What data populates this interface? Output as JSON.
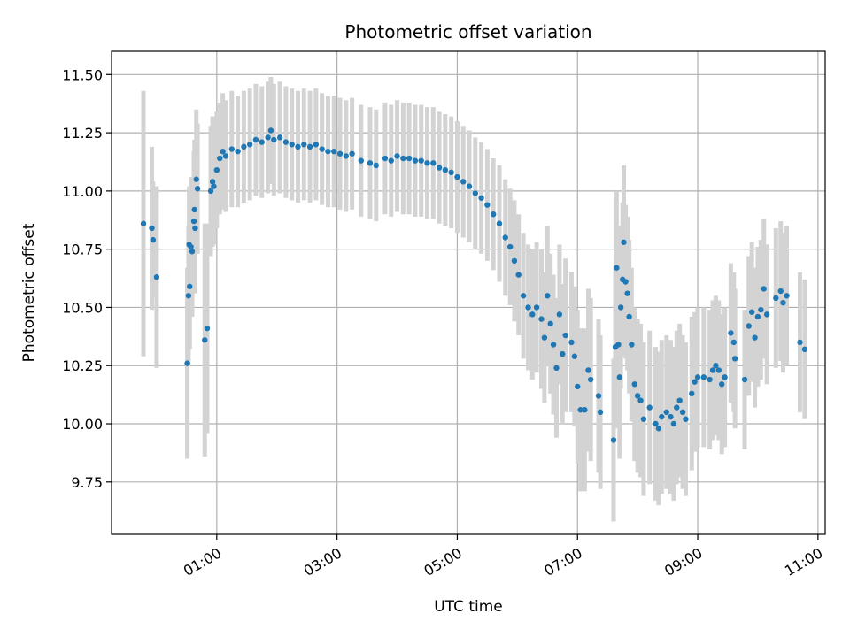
{
  "chart_data": {
    "type": "scatter",
    "title": "Photometric offset variation",
    "xlabel": "UTC time",
    "ylabel": "Photometric offset",
    "x_unit": "hours (UTC)",
    "xlim": [
      -0.75,
      11.12
    ],
    "ylim": [
      9.525,
      11.6
    ],
    "grid": true,
    "legend": "none",
    "x_ticks": [
      {
        "value": 1,
        "label": "01:00"
      },
      {
        "value": 3,
        "label": "03:00"
      },
      {
        "value": 5,
        "label": "05:00"
      },
      {
        "value": 7,
        "label": "07:00"
      },
      {
        "value": 9,
        "label": "09:00"
      },
      {
        "value": 11,
        "label": "11:00"
      }
    ],
    "y_ticks": [
      {
        "value": 9.75,
        "label": "9.75"
      },
      {
        "value": 10.0,
        "label": "10.00"
      },
      {
        "value": 10.25,
        "label": "10.25"
      },
      {
        "value": 10.5,
        "label": "10.50"
      },
      {
        "value": 10.75,
        "label": "10.75"
      },
      {
        "value": 11.0,
        "label": "11.00"
      },
      {
        "value": 11.25,
        "label": "11.25"
      },
      {
        "value": 11.5,
        "label": "11.50"
      }
    ],
    "colors": {
      "points": "#1f77b4",
      "errorbars": "#d3d3d3",
      "grid": "#b0b0b0"
    },
    "series": [
      {
        "points": [
          [
            -0.22,
            10.86,
            0.57
          ],
          [
            -0.08,
            10.84,
            0.35
          ],
          [
            -0.06,
            10.79,
            0.25
          ],
          [
            0.0,
            10.63,
            0.39
          ],
          [
            0.51,
            10.26,
            0.41
          ],
          [
            0.53,
            10.55,
            0.3
          ],
          [
            0.54,
            10.77,
            0.25
          ],
          [
            0.55,
            10.59,
            0.27
          ],
          [
            0.57,
            10.76,
            0.3
          ],
          [
            0.59,
            10.74,
            0.28
          ],
          [
            0.62,
            10.87,
            0.3
          ],
          [
            0.63,
            10.92,
            0.3
          ],
          [
            0.64,
            10.84,
            0.28
          ],
          [
            0.66,
            11.05,
            0.3
          ],
          [
            0.68,
            11.01,
            0.28
          ],
          [
            0.8,
            10.36,
            0.5
          ],
          [
            0.84,
            10.41,
            0.45
          ],
          [
            0.9,
            11.0,
            0.28
          ],
          [
            0.93,
            11.04,
            0.28
          ],
          [
            0.95,
            11.02,
            0.25
          ],
          [
            1.0,
            11.09,
            0.25
          ],
          [
            1.05,
            11.14,
            0.24
          ],
          [
            1.1,
            11.17,
            0.25
          ],
          [
            1.15,
            11.15,
            0.24
          ],
          [
            1.25,
            11.18,
            0.25
          ],
          [
            1.35,
            11.17,
            0.24
          ],
          [
            1.45,
            11.19,
            0.24
          ],
          [
            1.55,
            11.2,
            0.24
          ],
          [
            1.65,
            11.22,
            0.24
          ],
          [
            1.75,
            11.21,
            0.24
          ],
          [
            1.85,
            11.23,
            0.24
          ],
          [
            1.9,
            11.26,
            0.23
          ],
          [
            1.95,
            11.22,
            0.24
          ],
          [
            2.05,
            11.23,
            0.24
          ],
          [
            2.15,
            11.21,
            0.24
          ],
          [
            2.25,
            11.2,
            0.24
          ],
          [
            2.35,
            11.19,
            0.24
          ],
          [
            2.45,
            11.2,
            0.24
          ],
          [
            2.55,
            11.19,
            0.24
          ],
          [
            2.65,
            11.2,
            0.24
          ],
          [
            2.75,
            11.18,
            0.24
          ],
          [
            2.85,
            11.17,
            0.24
          ],
          [
            2.95,
            11.17,
            0.24
          ],
          [
            3.05,
            11.16,
            0.24
          ],
          [
            3.15,
            11.15,
            0.24
          ],
          [
            3.25,
            11.16,
            0.24
          ],
          [
            3.4,
            11.13,
            0.24
          ],
          [
            3.55,
            11.12,
            0.24
          ],
          [
            3.65,
            11.11,
            0.24
          ],
          [
            3.8,
            11.14,
            0.24
          ],
          [
            3.9,
            11.13,
            0.24
          ],
          [
            4.0,
            11.15,
            0.24
          ],
          [
            4.1,
            11.14,
            0.24
          ],
          [
            4.2,
            11.14,
            0.24
          ],
          [
            4.3,
            11.13,
            0.24
          ],
          [
            4.4,
            11.13,
            0.24
          ],
          [
            4.5,
            11.12,
            0.24
          ],
          [
            4.6,
            11.12,
            0.24
          ],
          [
            4.7,
            11.1,
            0.24
          ],
          [
            4.8,
            11.09,
            0.24
          ],
          [
            4.9,
            11.08,
            0.24
          ],
          [
            5.0,
            11.06,
            0.24
          ],
          [
            5.1,
            11.04,
            0.24
          ],
          [
            5.2,
            11.02,
            0.24
          ],
          [
            5.3,
            10.99,
            0.24
          ],
          [
            5.4,
            10.97,
            0.24
          ],
          [
            5.5,
            10.94,
            0.24
          ],
          [
            5.6,
            10.9,
            0.24
          ],
          [
            5.7,
            10.86,
            0.25
          ],
          [
            5.8,
            10.8,
            0.25
          ],
          [
            5.88,
            10.76,
            0.25
          ],
          [
            5.95,
            10.7,
            0.26
          ],
          [
            6.02,
            10.64,
            0.26
          ],
          [
            6.1,
            10.55,
            0.27
          ],
          [
            6.18,
            10.5,
            0.27
          ],
          [
            6.25,
            10.47,
            0.28
          ],
          [
            6.32,
            10.5,
            0.28
          ],
          [
            6.4,
            10.45,
            0.3
          ],
          [
            6.45,
            10.37,
            0.28
          ],
          [
            6.5,
            10.55,
            0.3
          ],
          [
            6.55,
            10.43,
            0.3
          ],
          [
            6.6,
            10.34,
            0.3
          ],
          [
            6.65,
            10.24,
            0.3
          ],
          [
            6.7,
            10.47,
            0.3
          ],
          [
            6.75,
            10.3,
            0.3
          ],
          [
            6.8,
            10.38,
            0.33
          ],
          [
            6.9,
            10.35,
            0.3
          ],
          [
            6.95,
            10.29,
            0.3
          ],
          [
            7.0,
            10.16,
            0.33
          ],
          [
            7.05,
            10.06,
            0.35
          ],
          [
            7.12,
            10.06,
            0.35
          ],
          [
            7.18,
            10.23,
            0.35
          ],
          [
            7.22,
            10.19,
            0.35
          ],
          [
            7.35,
            10.12,
            0.33
          ],
          [
            7.38,
            10.05,
            0.33
          ],
          [
            7.6,
            9.93,
            0.35
          ],
          [
            7.63,
            10.33,
            0.35
          ],
          [
            7.65,
            10.67,
            0.33
          ],
          [
            7.68,
            10.34,
            0.33
          ],
          [
            7.7,
            10.2,
            0.35
          ],
          [
            7.72,
            10.5,
            0.35
          ],
          [
            7.75,
            10.62,
            0.33
          ],
          [
            7.77,
            10.78,
            0.33
          ],
          [
            7.8,
            10.61,
            0.33
          ],
          [
            7.83,
            10.56,
            0.33
          ],
          [
            7.86,
            10.46,
            0.33
          ],
          [
            7.9,
            10.34,
            0.33
          ],
          [
            7.95,
            10.17,
            0.33
          ],
          [
            8.0,
            10.12,
            0.33
          ],
          [
            8.05,
            10.1,
            0.33
          ],
          [
            8.1,
            10.02,
            0.33
          ],
          [
            8.2,
            10.07,
            0.33
          ],
          [
            8.3,
            10.0,
            0.33
          ],
          [
            8.35,
            9.98,
            0.33
          ],
          [
            8.4,
            10.03,
            0.33
          ],
          [
            8.48,
            10.05,
            0.33
          ],
          [
            8.55,
            10.03,
            0.33
          ],
          [
            8.6,
            10.0,
            0.33
          ],
          [
            8.65,
            10.07,
            0.33
          ],
          [
            8.7,
            10.1,
            0.33
          ],
          [
            8.75,
            10.05,
            0.33
          ],
          [
            8.8,
            10.02,
            0.33
          ],
          [
            8.9,
            10.13,
            0.33
          ],
          [
            8.95,
            10.18,
            0.3
          ],
          [
            9.0,
            10.2,
            0.3
          ],
          [
            9.1,
            10.2,
            0.3
          ],
          [
            9.2,
            10.19,
            0.3
          ],
          [
            9.25,
            10.23,
            0.3
          ],
          [
            9.3,
            10.25,
            0.3
          ],
          [
            9.35,
            10.23,
            0.3
          ],
          [
            9.4,
            10.17,
            0.3
          ],
          [
            9.45,
            10.2,
            0.3
          ],
          [
            9.55,
            10.39,
            0.3
          ],
          [
            9.6,
            10.35,
            0.3
          ],
          [
            9.62,
            10.28,
            0.3
          ],
          [
            9.78,
            10.19,
            0.3
          ],
          [
            9.85,
            10.42,
            0.3
          ],
          [
            9.9,
            10.48,
            0.3
          ],
          [
            9.95,
            10.37,
            0.3
          ],
          [
            10.0,
            10.46,
            0.3
          ],
          [
            10.05,
            10.49,
            0.3
          ],
          [
            10.1,
            10.58,
            0.3
          ],
          [
            10.15,
            10.47,
            0.3
          ],
          [
            10.3,
            10.54,
            0.3
          ],
          [
            10.38,
            10.57,
            0.3
          ],
          [
            10.42,
            10.52,
            0.3
          ],
          [
            10.48,
            10.55,
            0.3
          ],
          [
            10.7,
            10.35,
            0.3
          ],
          [
            10.78,
            10.32,
            0.3
          ]
        ]
      }
    ]
  }
}
